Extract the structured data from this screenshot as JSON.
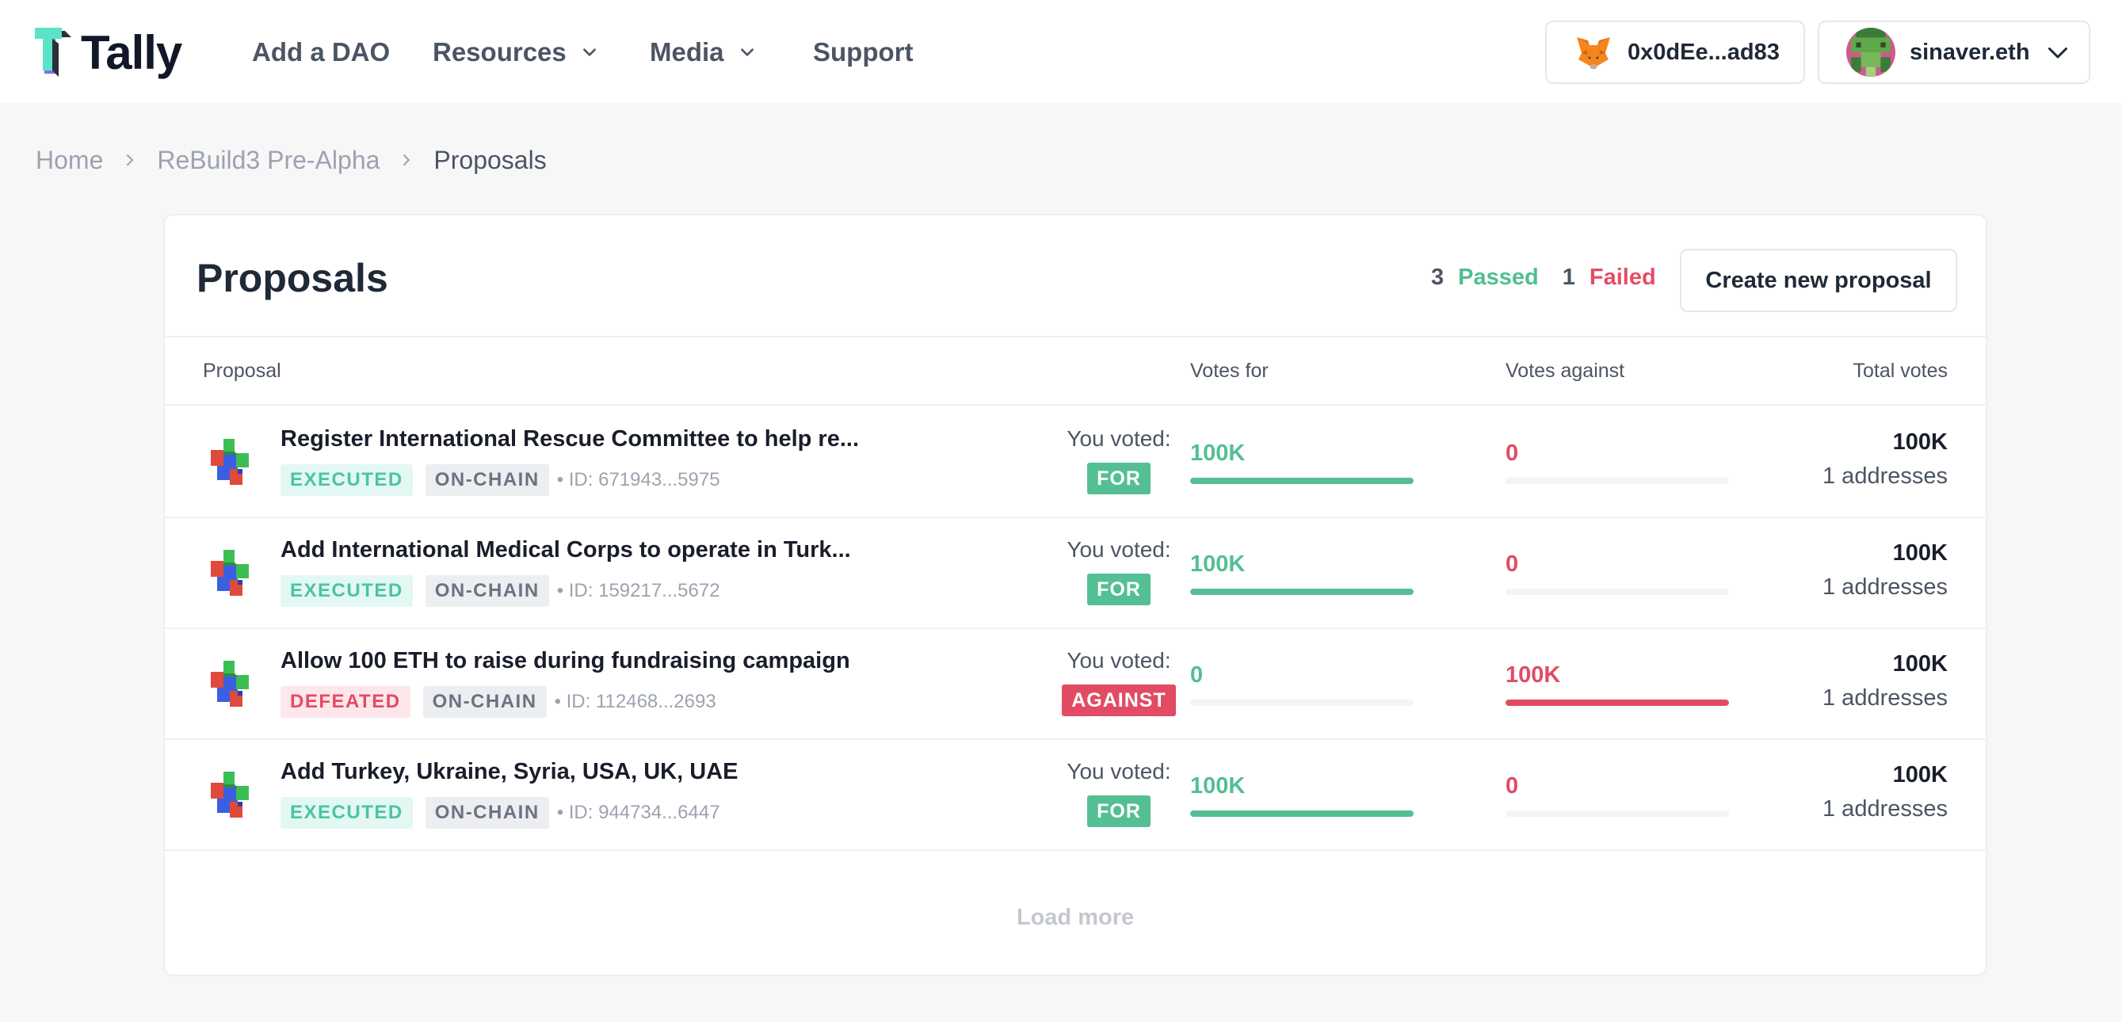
{
  "header": {
    "logo_text": "Tally",
    "nav": [
      {
        "label": "Add a DAO"
      },
      {
        "label": "Resources"
      },
      {
        "label": "Media"
      },
      {
        "label": "Support"
      }
    ],
    "wallet_address": "0x0dEe...ad83",
    "user_name": "sinaver.eth"
  },
  "breadcrumb": [
    "Home",
    "ReBuild3 Pre-Alpha",
    "Proposals"
  ],
  "card": {
    "title": "Proposals",
    "passed_count": "3",
    "passed_label": "Passed",
    "failed_count": "1",
    "failed_label": "Failed",
    "create_button": "Create new proposal"
  },
  "columns": {
    "proposal": "Proposal",
    "votes_for": "Votes for",
    "votes_against": "Votes against",
    "total_votes": "Total votes"
  },
  "proposals": [
    {
      "title": "Register International Rescue Committee to help re...",
      "status": "EXECUTED",
      "type": "ON-CHAIN",
      "id": "• ID: 671943...5975",
      "voted_label": "You voted:",
      "voted": "FOR",
      "votes_for": "100K",
      "for_fraction": 1.0,
      "votes_against": "0",
      "against_fraction": 0.0,
      "total": "100K",
      "addresses": "1 addresses"
    },
    {
      "title": "Add International Medical Corps to operate in Turk...",
      "status": "EXECUTED",
      "type": "ON-CHAIN",
      "id": "• ID: 159217...5672",
      "voted_label": "You voted:",
      "voted": "FOR",
      "votes_for": "100K",
      "for_fraction": 1.0,
      "votes_against": "0",
      "against_fraction": 0.0,
      "total": "100K",
      "addresses": "1 addresses"
    },
    {
      "title": "Allow 100 ETH to raise during fundraising campaign",
      "status": "DEFEATED",
      "type": "ON-CHAIN",
      "id": "• ID: 112468...2693",
      "voted_label": "You voted:",
      "voted": "AGAINST",
      "votes_for": "0",
      "for_fraction": 0.0,
      "votes_against": "100K",
      "against_fraction": 1.0,
      "total": "100K",
      "addresses": "1 addresses"
    },
    {
      "title": "Add Turkey, Ukraine, Syria, USA, UK, UAE",
      "status": "EXECUTED",
      "type": "ON-CHAIN",
      "id": "• ID: 944734...6447",
      "voted_label": "You voted:",
      "voted": "FOR",
      "votes_for": "100K",
      "for_fraction": 1.0,
      "votes_against": "0",
      "against_fraction": 0.0,
      "total": "100K",
      "addresses": "1 addresses"
    }
  ],
  "load_more": "Load more",
  "colors": {
    "accent_green": "#55bf94",
    "accent_red": "#e24b63"
  }
}
